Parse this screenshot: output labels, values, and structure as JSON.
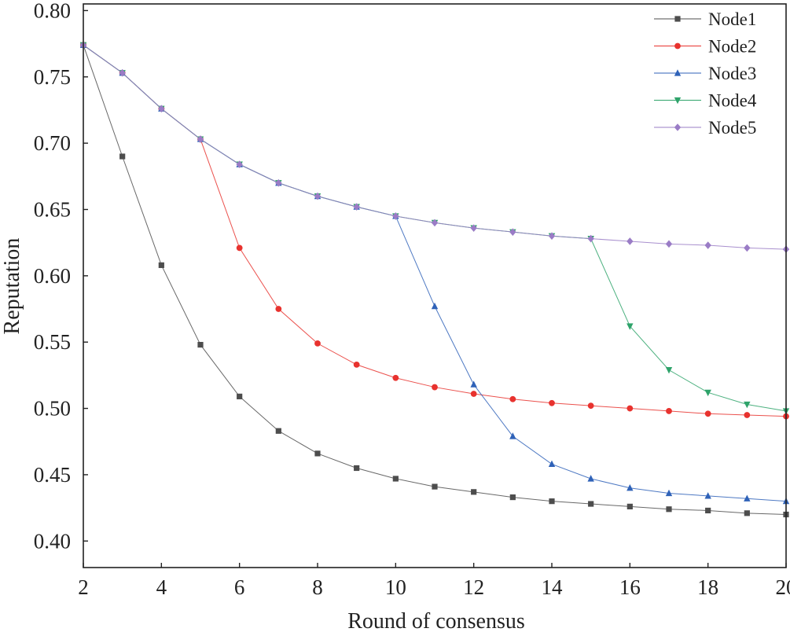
{
  "chart_data": {
    "type": "line",
    "xlabel": "Round of consensus",
    "ylabel": "Reputation",
    "xlim": [
      2,
      20
    ],
    "ylim": [
      0.38,
      0.805
    ],
    "xticks": [
      2,
      4,
      6,
      8,
      10,
      12,
      14,
      16,
      18,
      20
    ],
    "yticks": [
      0.4,
      0.45,
      0.5,
      0.55,
      0.6,
      0.65,
      0.7,
      0.75,
      0.8
    ],
    "legend_position": "top-right",
    "x": [
      2,
      3,
      4,
      5,
      6,
      7,
      8,
      9,
      10,
      11,
      12,
      13,
      14,
      15,
      16,
      17,
      18,
      19,
      20
    ],
    "series": [
      {
        "name": "Node1",
        "color": "#4d4d4d",
        "marker": "square",
        "values": [
          0.774,
          0.69,
          0.608,
          0.548,
          0.509,
          0.483,
          0.466,
          0.455,
          0.447,
          0.441,
          0.437,
          0.433,
          0.43,
          0.428,
          0.426,
          0.424,
          0.423,
          0.421,
          0.42
        ]
      },
      {
        "name": "Node2",
        "color": "#e8322e",
        "marker": "circle",
        "values": [
          0.774,
          0.753,
          0.726,
          0.703,
          0.621,
          0.575,
          0.549,
          0.533,
          0.523,
          0.516,
          0.511,
          0.507,
          0.504,
          0.502,
          0.5,
          0.498,
          0.496,
          0.495,
          0.494
        ]
      },
      {
        "name": "Node3",
        "color": "#2f62b8",
        "marker": "triangle-up",
        "values": [
          0.774,
          0.753,
          0.726,
          0.703,
          0.684,
          0.67,
          0.66,
          0.652,
          0.645,
          0.577,
          0.518,
          0.479,
          0.458,
          0.447,
          0.44,
          0.436,
          0.434,
          0.432,
          0.43
        ]
      },
      {
        "name": "Node4",
        "color": "#2ea36a",
        "marker": "triangle-down",
        "values": [
          0.774,
          0.753,
          0.726,
          0.703,
          0.684,
          0.67,
          0.66,
          0.652,
          0.645,
          0.64,
          0.636,
          0.633,
          0.63,
          0.628,
          0.562,
          0.529,
          0.512,
          0.503,
          0.498
        ]
      },
      {
        "name": "Node5",
        "color": "#9a7cc6",
        "marker": "diamond",
        "values": [
          0.774,
          0.753,
          0.726,
          0.703,
          0.684,
          0.67,
          0.66,
          0.652,
          0.645,
          0.64,
          0.636,
          0.633,
          0.63,
          0.628,
          0.626,
          0.624,
          0.623,
          0.621,
          0.62
        ]
      }
    ]
  }
}
